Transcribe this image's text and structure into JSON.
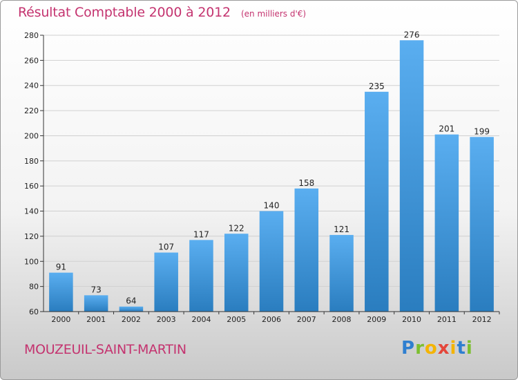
{
  "header": {
    "title": "Résultat Comptable 2000 à 2012",
    "unit": "(en milliers d'€)"
  },
  "footer": {
    "place": "MOUZEUIL-SAINT-MARTIN",
    "brand": {
      "letters": [
        "P",
        "r",
        "o",
        "x",
        "i",
        "t",
        "i"
      ],
      "colors": [
        "#2f7fd0",
        "#7cbf2f",
        "#f4b400",
        "#e4463a",
        "#f4b400",
        "#2f7fd0",
        "#7cbf2f"
      ]
    }
  },
  "colors": {
    "bar_light": "#5aaef0",
    "bar_dark": "#2a7dbf",
    "title": "#c4336f"
  },
  "chart_data": {
    "type": "bar",
    "categories": [
      "2000",
      "2001",
      "2002",
      "2003",
      "2004",
      "2005",
      "2006",
      "2007",
      "2008",
      "2009",
      "2010",
      "2011",
      "2012"
    ],
    "values": [
      91,
      73,
      64,
      107,
      117,
      122,
      140,
      158,
      121,
      235,
      276,
      201,
      199
    ],
    "ylim": [
      60,
      280
    ],
    "yticks": [
      60,
      80,
      100,
      120,
      140,
      160,
      180,
      200,
      220,
      240,
      260,
      280
    ],
    "grid": true,
    "legend": "none"
  }
}
